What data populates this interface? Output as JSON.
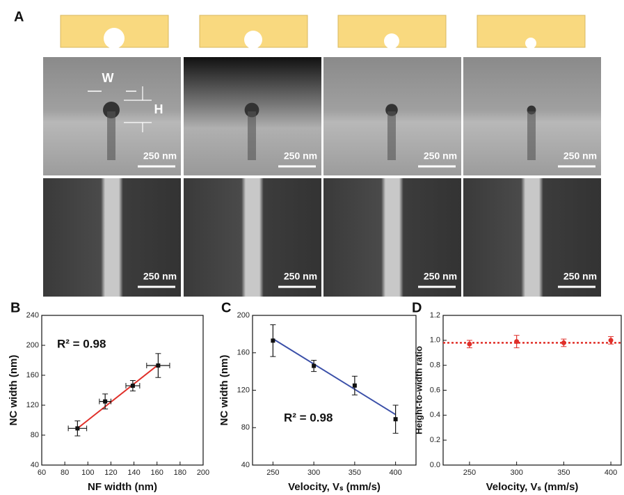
{
  "panel_a": {
    "label": "A",
    "w_label": "W",
    "h_label": "H",
    "scale_bars": [
      "250 nm",
      "250 nm",
      "250 nm",
      "250 nm",
      "250 nm",
      "250 nm",
      "250 nm",
      "250 nm"
    ]
  },
  "chart_data": [
    {
      "type": "scatter",
      "label": "B",
      "x_label": "NF width (nm)",
      "y_label": "NC width (nm)",
      "annotation": "R² = 0.98",
      "x": [
        91,
        115,
        139,
        161
      ],
      "values": [
        89,
        125,
        146,
        173
      ],
      "x_errors": [
        8,
        5,
        6,
        10
      ],
      "errors": [
        10,
        10,
        7,
        16
      ],
      "color": "#111111",
      "fit": {
        "x": [
          91,
          161
        ],
        "values": [
          89,
          174
        ],
        "color": "#e0302a"
      },
      "xlim": [
        60,
        200
      ],
      "xticks": [
        60,
        80,
        100,
        120,
        140,
        160,
        180,
        200
      ],
      "ylim": [
        40,
        240
      ],
      "yticks": [
        40,
        80,
        120,
        160,
        200,
        240
      ]
    },
    {
      "type": "scatter",
      "label": "C",
      "x_label": "Velocity, Vₛ (mm/s)",
      "y_label": "NC width (nm)",
      "annotation": "R² = 0.98",
      "x": [
        250,
        300,
        350,
        400
      ],
      "values": [
        173,
        146,
        125,
        89
      ],
      "errors": [
        17,
        6,
        10,
        15
      ],
      "color": "#111111",
      "fit": {
        "x": [
          250,
          400
        ],
        "values": [
          175,
          94
        ],
        "color": "#3a4fa8"
      },
      "xlim": [
        225,
        425
      ],
      "xticks": [
        250,
        300,
        350,
        400
      ],
      "ylim": [
        40,
        200
      ],
      "yticks": [
        40,
        80,
        120,
        160,
        200
      ]
    },
    {
      "type": "scatter",
      "label": "D",
      "x_label": "Velocity, Vₛ (mm/s)",
      "y_label": "Height-to-width ratio",
      "x": [
        250,
        300,
        350,
        400
      ],
      "values": [
        0.97,
        0.99,
        0.98,
        1.0
      ],
      "errors": [
        0.03,
        0.05,
        0.03,
        0.03
      ],
      "color": "#e0302a",
      "hline": {
        "value": 0.98,
        "color": "#e0302a"
      },
      "xlim": [
        222,
        411
      ],
      "xticks": [
        250,
        300,
        350,
        400
      ],
      "ylim": [
        0,
        1.2
      ],
      "yticks": [
        {
          "value": 0,
          "label": "0.0"
        },
        {
          "value": 0.2,
          "label": "0.2"
        },
        {
          "value": 0.4,
          "label": "0.4"
        },
        {
          "value": 0.6,
          "label": "0.6"
        },
        {
          "value": 0.8,
          "label": "0.8"
        },
        {
          "value": 1.0,
          "label": "1.0"
        },
        {
          "value": 1.2,
          "label": "1.2"
        }
      ]
    }
  ]
}
